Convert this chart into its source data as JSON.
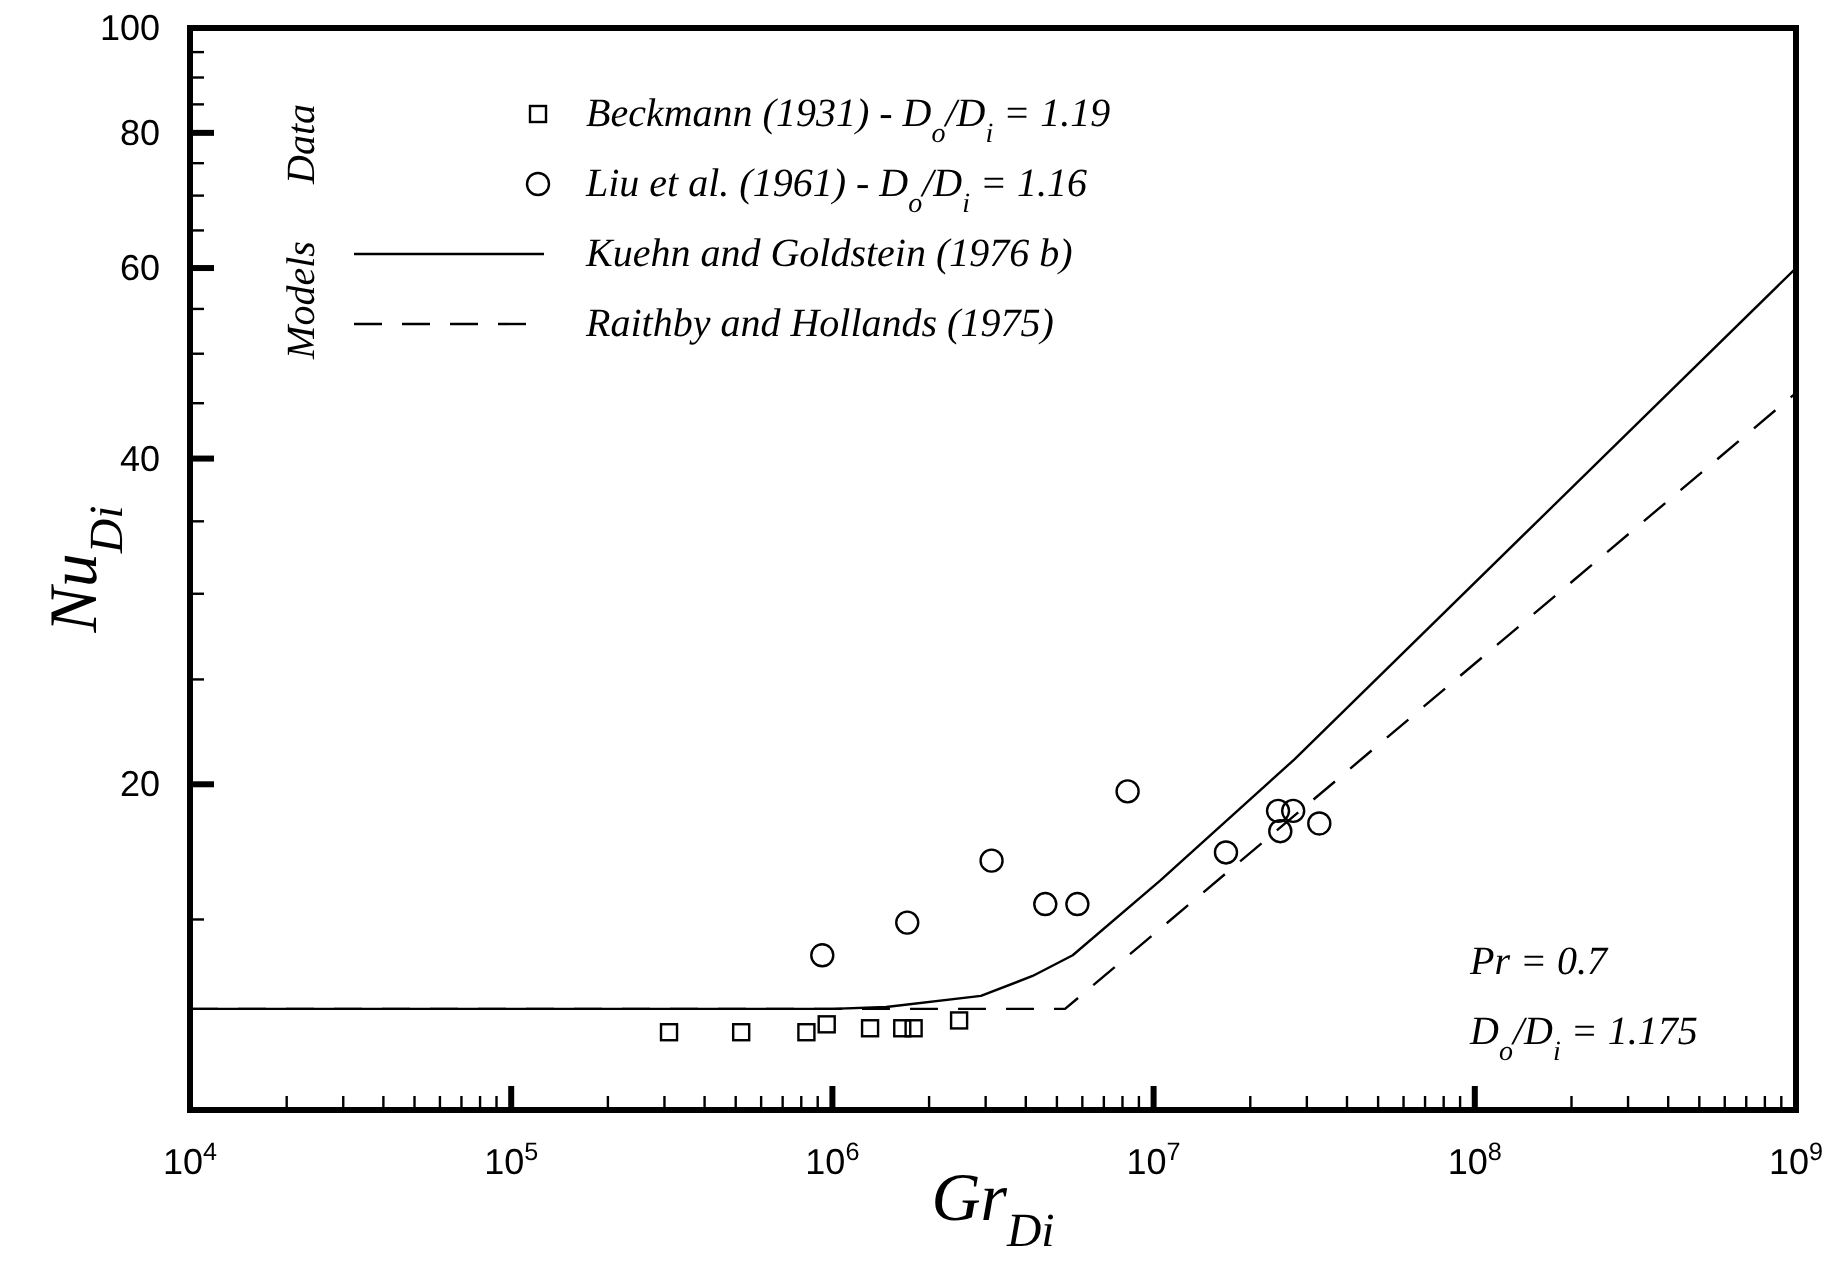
{
  "chart_data": {
    "type": "scatter",
    "xlabel": "Gr$_{Di}$",
    "ylabel": "Nu$_{Di}$",
    "log": "xy",
    "grid": false,
    "legend": "top left",
    "xlim": [
      10000,
      1000000000
    ],
    "ylim": [
      10,
      100
    ],
    "xticks": [
      {
        "value": 10000,
        "label": "10$^{4}$"
      },
      {
        "value": 20000,
        "label": null
      },
      {
        "value": 30000,
        "label": null
      },
      {
        "value": 40000,
        "label": null
      },
      {
        "value": 50000,
        "label": null
      },
      {
        "value": 60000,
        "label": null
      },
      {
        "value": 70000,
        "label": null
      },
      {
        "value": 80000,
        "label": null
      },
      {
        "value": 90000,
        "label": null
      },
      {
        "value": 100000,
        "label": "10$^{5}$"
      },
      {
        "value": 200000,
        "label": null
      },
      {
        "value": 300000,
        "label": null
      },
      {
        "value": 400000,
        "label": null
      },
      {
        "value": 500000,
        "label": null
      },
      {
        "value": 600000,
        "label": null
      },
      {
        "value": 700000,
        "label": null
      },
      {
        "value": 800000,
        "label": null
      },
      {
        "value": 900000,
        "label": null
      },
      {
        "value": 1000000,
        "label": "10$^{6}$"
      },
      {
        "value": 2000000,
        "label": null
      },
      {
        "value": 3000000,
        "label": null
      },
      {
        "value": 4000000,
        "label": null
      },
      {
        "value": 5000000,
        "label": null
      },
      {
        "value": 6000000,
        "label": null
      },
      {
        "value": 7000000,
        "label": null
      },
      {
        "value": 8000000,
        "label": null
      },
      {
        "value": 9000000,
        "label": null
      },
      {
        "value": 10000000,
        "label": "10$^{7}$"
      },
      {
        "value": 20000000,
        "label": null
      },
      {
        "value": 30000000,
        "label": null
      },
      {
        "value": 40000000,
        "label": null
      },
      {
        "value": 50000000,
        "label": null
      },
      {
        "value": 60000000,
        "label": null
      },
      {
        "value": 70000000,
        "label": null
      },
      {
        "value": 80000000,
        "label": null
      },
      {
        "value": 90000000,
        "label": null
      },
      {
        "value": 100000000,
        "label": "10$^{8}$"
      },
      {
        "value": 200000000,
        "label": null
      },
      {
        "value": 300000000,
        "label": null
      },
      {
        "value": 400000000,
        "label": null
      },
      {
        "value": 500000000,
        "label": null
      },
      {
        "value": 600000000,
        "label": null
      },
      {
        "value": 700000000,
        "label": null
      },
      {
        "value": 800000000,
        "label": null
      },
      {
        "value": 900000000,
        "label": null
      },
      {
        "value": 1000000000,
        "label": "10$^{9}$"
      }
    ],
    "yticks": [
      {
        "value": 15,
        "label": null
      },
      20,
      {
        "value": 25,
        "label": null
      },
      {
        "value": 30,
        "label": null
      },
      {
        "value": 35,
        "label": null
      },
      40,
      {
        "value": 45,
        "label": null
      },
      {
        "value": 50,
        "label": null
      },
      {
        "value": 55,
        "label": null
      },
      60,
      {
        "value": 65,
        "label": null
      },
      {
        "value": 70,
        "label": null
      },
      {
        "value": 75,
        "label": null
      },
      80,
      {
        "value": 85,
        "label": null
      },
      {
        "value": 90,
        "label": null
      },
      {
        "value": 95,
        "label": null
      },
      100
    ],
    "series": [
      {
        "name": "Beckmann (1931)  -  D$_{o}$/D$_{i}$ = 1.19",
        "marker": "square",
        "color": "#000000",
        "x": [
          310000,
          520000,
          830000,
          960000,
          1310000,
          1650000,
          1790000,
          2480000
        ],
        "values": [
          11.8,
          11.8,
          11.8,
          12.0,
          11.9,
          11.9,
          11.9,
          12.1
        ]
      },
      {
        "name": "Liu et al. (1961)  -  D$_{o}$/D$_{i}$ = 1.16",
        "marker": "circle",
        "color": "#000000",
        "x": [
          930000,
          1710000,
          3130000,
          4600000,
          5790000,
          8300000,
          16800000,
          24400000,
          27200000,
          24800000,
          32800000
        ],
        "values": [
          13.9,
          14.9,
          17.0,
          15.5,
          15.5,
          19.7,
          17.3,
          18.9,
          18.9,
          18.1,
          18.4
        ]
      },
      {
        "name": "Kuehn and Goldstein (1976 b)",
        "type": "line",
        "marker": "none",
        "line_style": "solid",
        "color": "#000000",
        "x": [
          10000,
          1000000,
          1470000,
          2900000,
          4200000,
          5600000,
          10500000,
          27500000,
          1000000000
        ],
        "values": [
          12.4,
          12.4,
          12.45,
          12.75,
          13.3,
          13.9,
          16.3,
          21.1,
          60
        ]
      },
      {
        "name": "Raithby and Hollands (1975)",
        "type": "line",
        "marker": "none",
        "line_style": "dashed",
        "color": "#000000",
        "x": [
          10000,
          5300000,
          1000000000
        ],
        "values": [
          12.4,
          12.4,
          46
        ]
      }
    ],
    "annotations": [
      "Data",
      "Models",
      "Pr = 0.7",
      "D$_{o}$/D$_{i}$ = 1.175"
    ]
  }
}
